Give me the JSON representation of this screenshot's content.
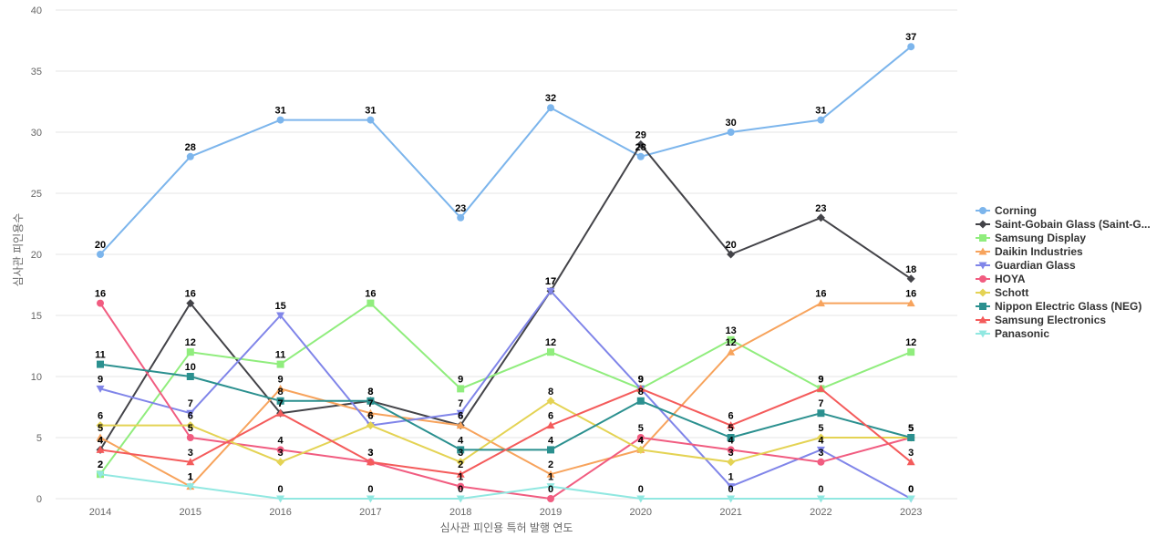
{
  "chart_data": {
    "type": "line",
    "title": "",
    "xlabel": "심사관 피인용 특허 발행 연도",
    "ylabel": "심사관 피인용수",
    "ylim": [
      0,
      40
    ],
    "y_ticks": [
      0,
      5,
      10,
      15,
      20,
      25,
      30,
      35,
      40
    ],
    "categories": [
      "2014",
      "2015",
      "2016",
      "2017",
      "2018",
      "2019",
      "2020",
      "2021",
      "2022",
      "2023"
    ],
    "legend_position": "right",
    "grid": true,
    "series": [
      {
        "name": "Corning",
        "legend_label": "Corning",
        "color": "#7cb5ec",
        "marker": "circle",
        "values": [
          20,
          28,
          31,
          31,
          23,
          32,
          28,
          30,
          31,
          37
        ]
      },
      {
        "name": "Saint-Gobain Glass (Saint-Gobain)",
        "legend_label": "Saint-Gobain Glass (Saint-G...",
        "color": "#434348",
        "marker": "diamond",
        "values": [
          4,
          16,
          7,
          8,
          6,
          17,
          29,
          20,
          23,
          18
        ]
      },
      {
        "name": "Samsung Display",
        "legend_label": "Samsung Display",
        "color": "#90ed7d",
        "marker": "square",
        "values": [
          2,
          12,
          11,
          16,
          9,
          12,
          9,
          13,
          9,
          12
        ]
      },
      {
        "name": "Daikin Industries",
        "legend_label": "Daikin Industries",
        "color": "#f7a35c",
        "marker": "triangle",
        "values": [
          5,
          1,
          9,
          7,
          6,
          2,
          4,
          12,
          16,
          16
        ]
      },
      {
        "name": "Guardian Glass",
        "legend_label": "Guardian Glass",
        "color": "#8085e9",
        "marker": "triangle-down",
        "values": [
          9,
          7,
          15,
          6,
          7,
          17,
          9,
          1,
          4,
          0
        ]
      },
      {
        "name": "HOYA",
        "legend_label": "HOYA",
        "color": "#f15c80",
        "marker": "circle",
        "values": [
          16,
          5,
          4,
          3,
          1,
          0,
          5,
          4,
          3,
          5
        ]
      },
      {
        "name": "Schott",
        "legend_label": "Schott",
        "color": "#e4d354",
        "marker": "diamond",
        "values": [
          6,
          6,
          3,
          6,
          3,
          8,
          4,
          3,
          5,
          5
        ]
      },
      {
        "name": "Nippon Electric Glass (NEG)",
        "legend_label": "Nippon Electric Glass (NEG)",
        "color": "#2b908f",
        "marker": "square",
        "values": [
          11,
          10,
          8,
          8,
          4,
          4,
          8,
          5,
          7,
          5
        ]
      },
      {
        "name": "Samsung Electronics",
        "legend_label": "Samsung Electronics",
        "color": "#f45b5b",
        "marker": "triangle",
        "values": [
          4,
          3,
          7,
          3,
          2,
          6,
          9,
          6,
          9,
          3
        ]
      },
      {
        "name": "Panasonic",
        "legend_label": "Panasonic",
        "color": "#91e8e1",
        "marker": "triangle-down",
        "values": [
          2,
          1,
          0,
          0,
          0,
          1,
          0,
          0,
          0,
          0
        ]
      }
    ]
  }
}
